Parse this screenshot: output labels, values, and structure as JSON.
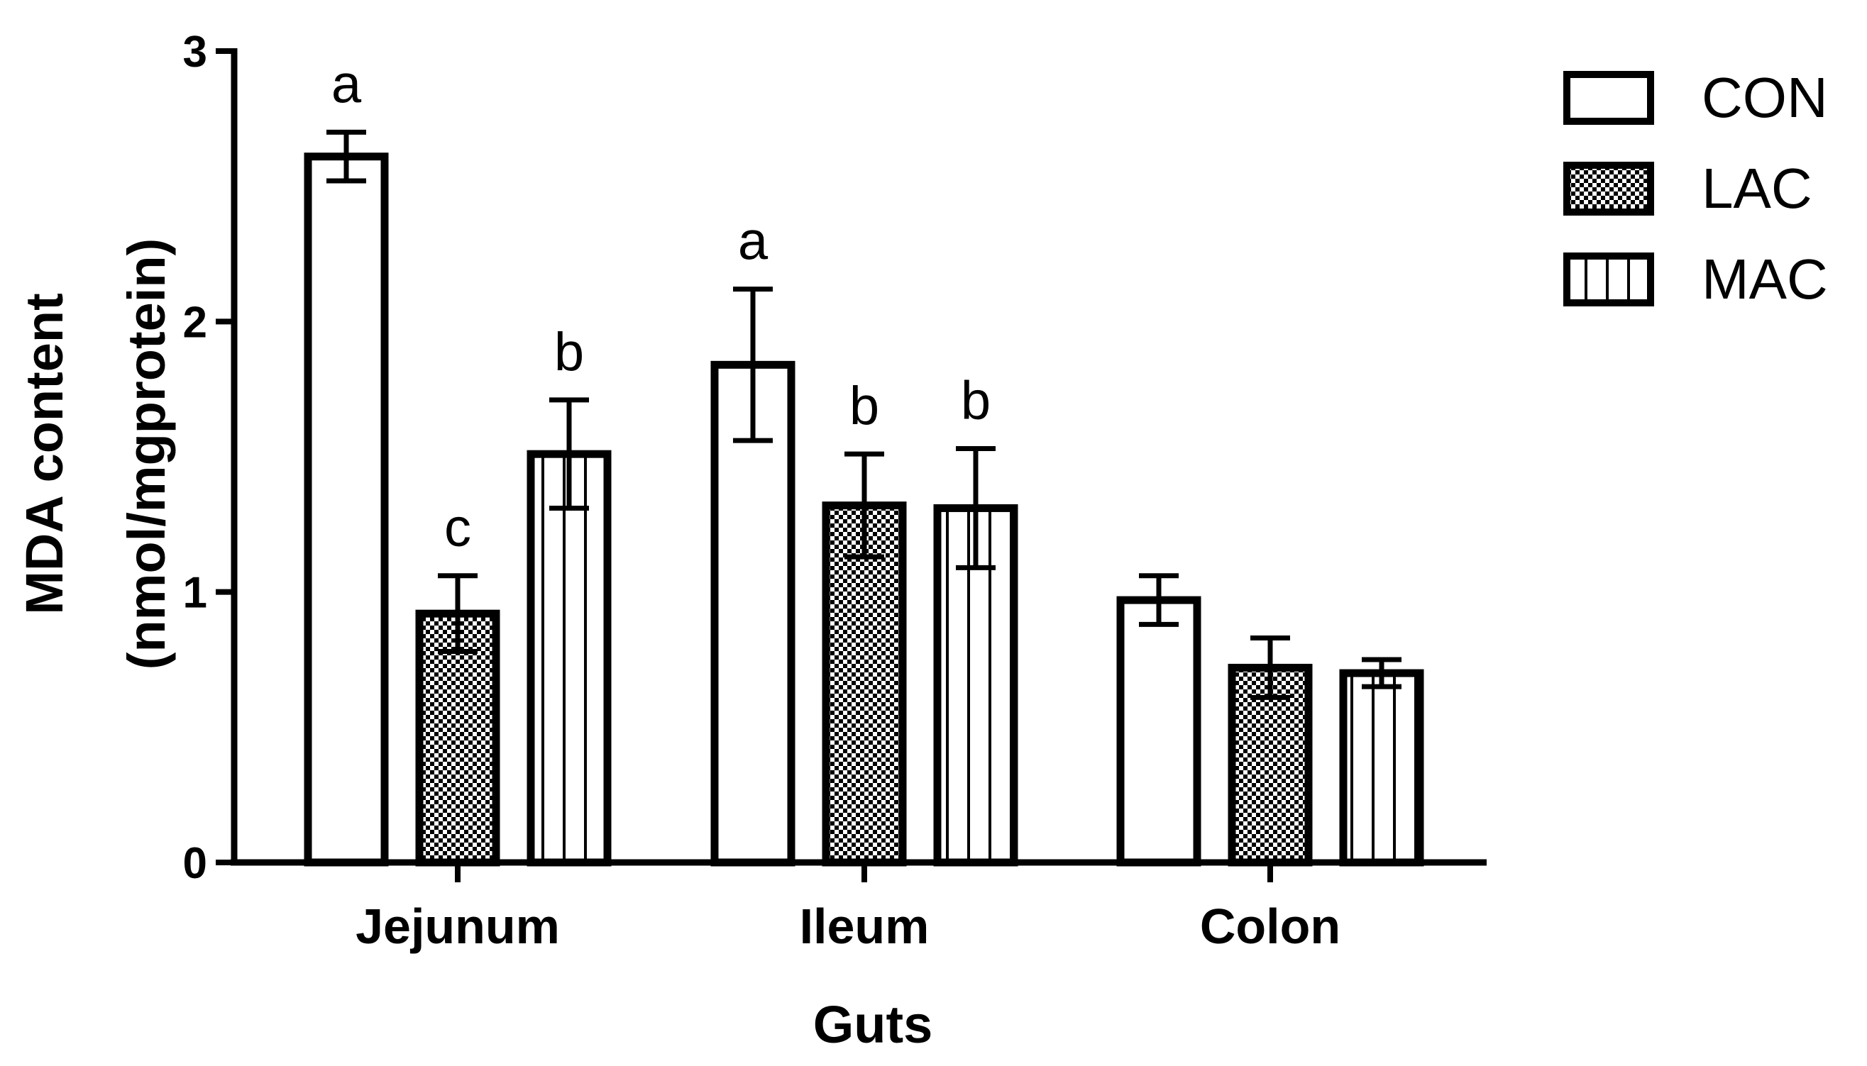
{
  "chart_data": {
    "type": "bar",
    "xlabel": "Guts",
    "ylabel_line1": "MDA content",
    "ylabel_line2": "(nmol/mgprotein)",
    "ylim": [
      0,
      3
    ],
    "yticks": [
      "0",
      "1",
      "2",
      "3"
    ],
    "categories": [
      "Jejunum",
      "Ileum",
      "Colon"
    ],
    "legend_position": "top-right",
    "grid": false,
    "series": [
      {
        "name": "CON",
        "pattern": "blank",
        "values": [
          2.61,
          1.84,
          0.97
        ],
        "errors": [
          0.09,
          0.28,
          0.09
        ],
        "labels": [
          "a",
          "a",
          ""
        ]
      },
      {
        "name": "LAC",
        "pattern": "checker",
        "values": [
          0.92,
          1.32,
          0.72
        ],
        "errors": [
          0.14,
          0.19,
          0.11
        ],
        "labels": [
          "c",
          "b",
          ""
        ]
      },
      {
        "name": "MAC",
        "pattern": "vertical-stripes",
        "values": [
          1.51,
          1.31,
          0.7
        ],
        "errors": [
          0.2,
          0.22,
          0.05
        ],
        "labels": [
          "b",
          "b",
          ""
        ]
      }
    ],
    "colors": {
      "ink": "#000000",
      "fill": "#ffffff"
    }
  }
}
